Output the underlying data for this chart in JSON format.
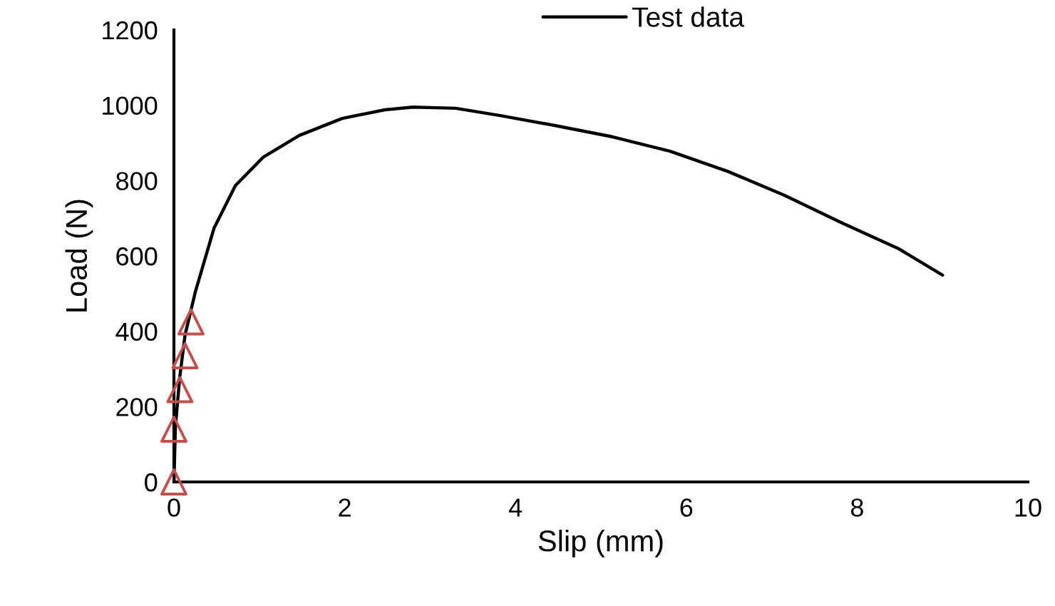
{
  "chart_data": {
    "type": "line",
    "xlabel": "Slip (mm)",
    "ylabel": "Load (N)",
    "xlim": [
      0,
      10
    ],
    "ylim": [
      0,
      1200
    ],
    "xticks": [
      0,
      2,
      4,
      6,
      8,
      10
    ],
    "yticks": [
      0,
      200,
      400,
      600,
      800,
      1000,
      1200
    ],
    "grid": false,
    "legend": "top",
    "series": [
      {
        "name": "Test data",
        "color": "#000000",
        "marker": "none",
        "x": [
          0,
          0.017,
          0.067,
          0.13,
          0.25,
          0.47,
          0.72,
          1.05,
          1.47,
          1.97,
          2.47,
          2.8,
          3.3,
          3.81,
          4.47,
          5.14,
          5.81,
          6.48,
          7.15,
          7.81,
          8.48,
          9.0
        ],
        "values": [
          0,
          144,
          276,
          390,
          504,
          674,
          787,
          863,
          920,
          965,
          988,
          995,
          992,
          973,
          946,
          916,
          878,
          825,
          761,
          689,
          620,
          549
        ]
      },
      {
        "type": "scatter",
        "color": "#c0504d",
        "marker": "triangle",
        "x": [
          0,
          0,
          0.07,
          0.13,
          0.2
        ],
        "values": [
          0,
          140,
          245,
          335,
          425
        ]
      }
    ]
  }
}
